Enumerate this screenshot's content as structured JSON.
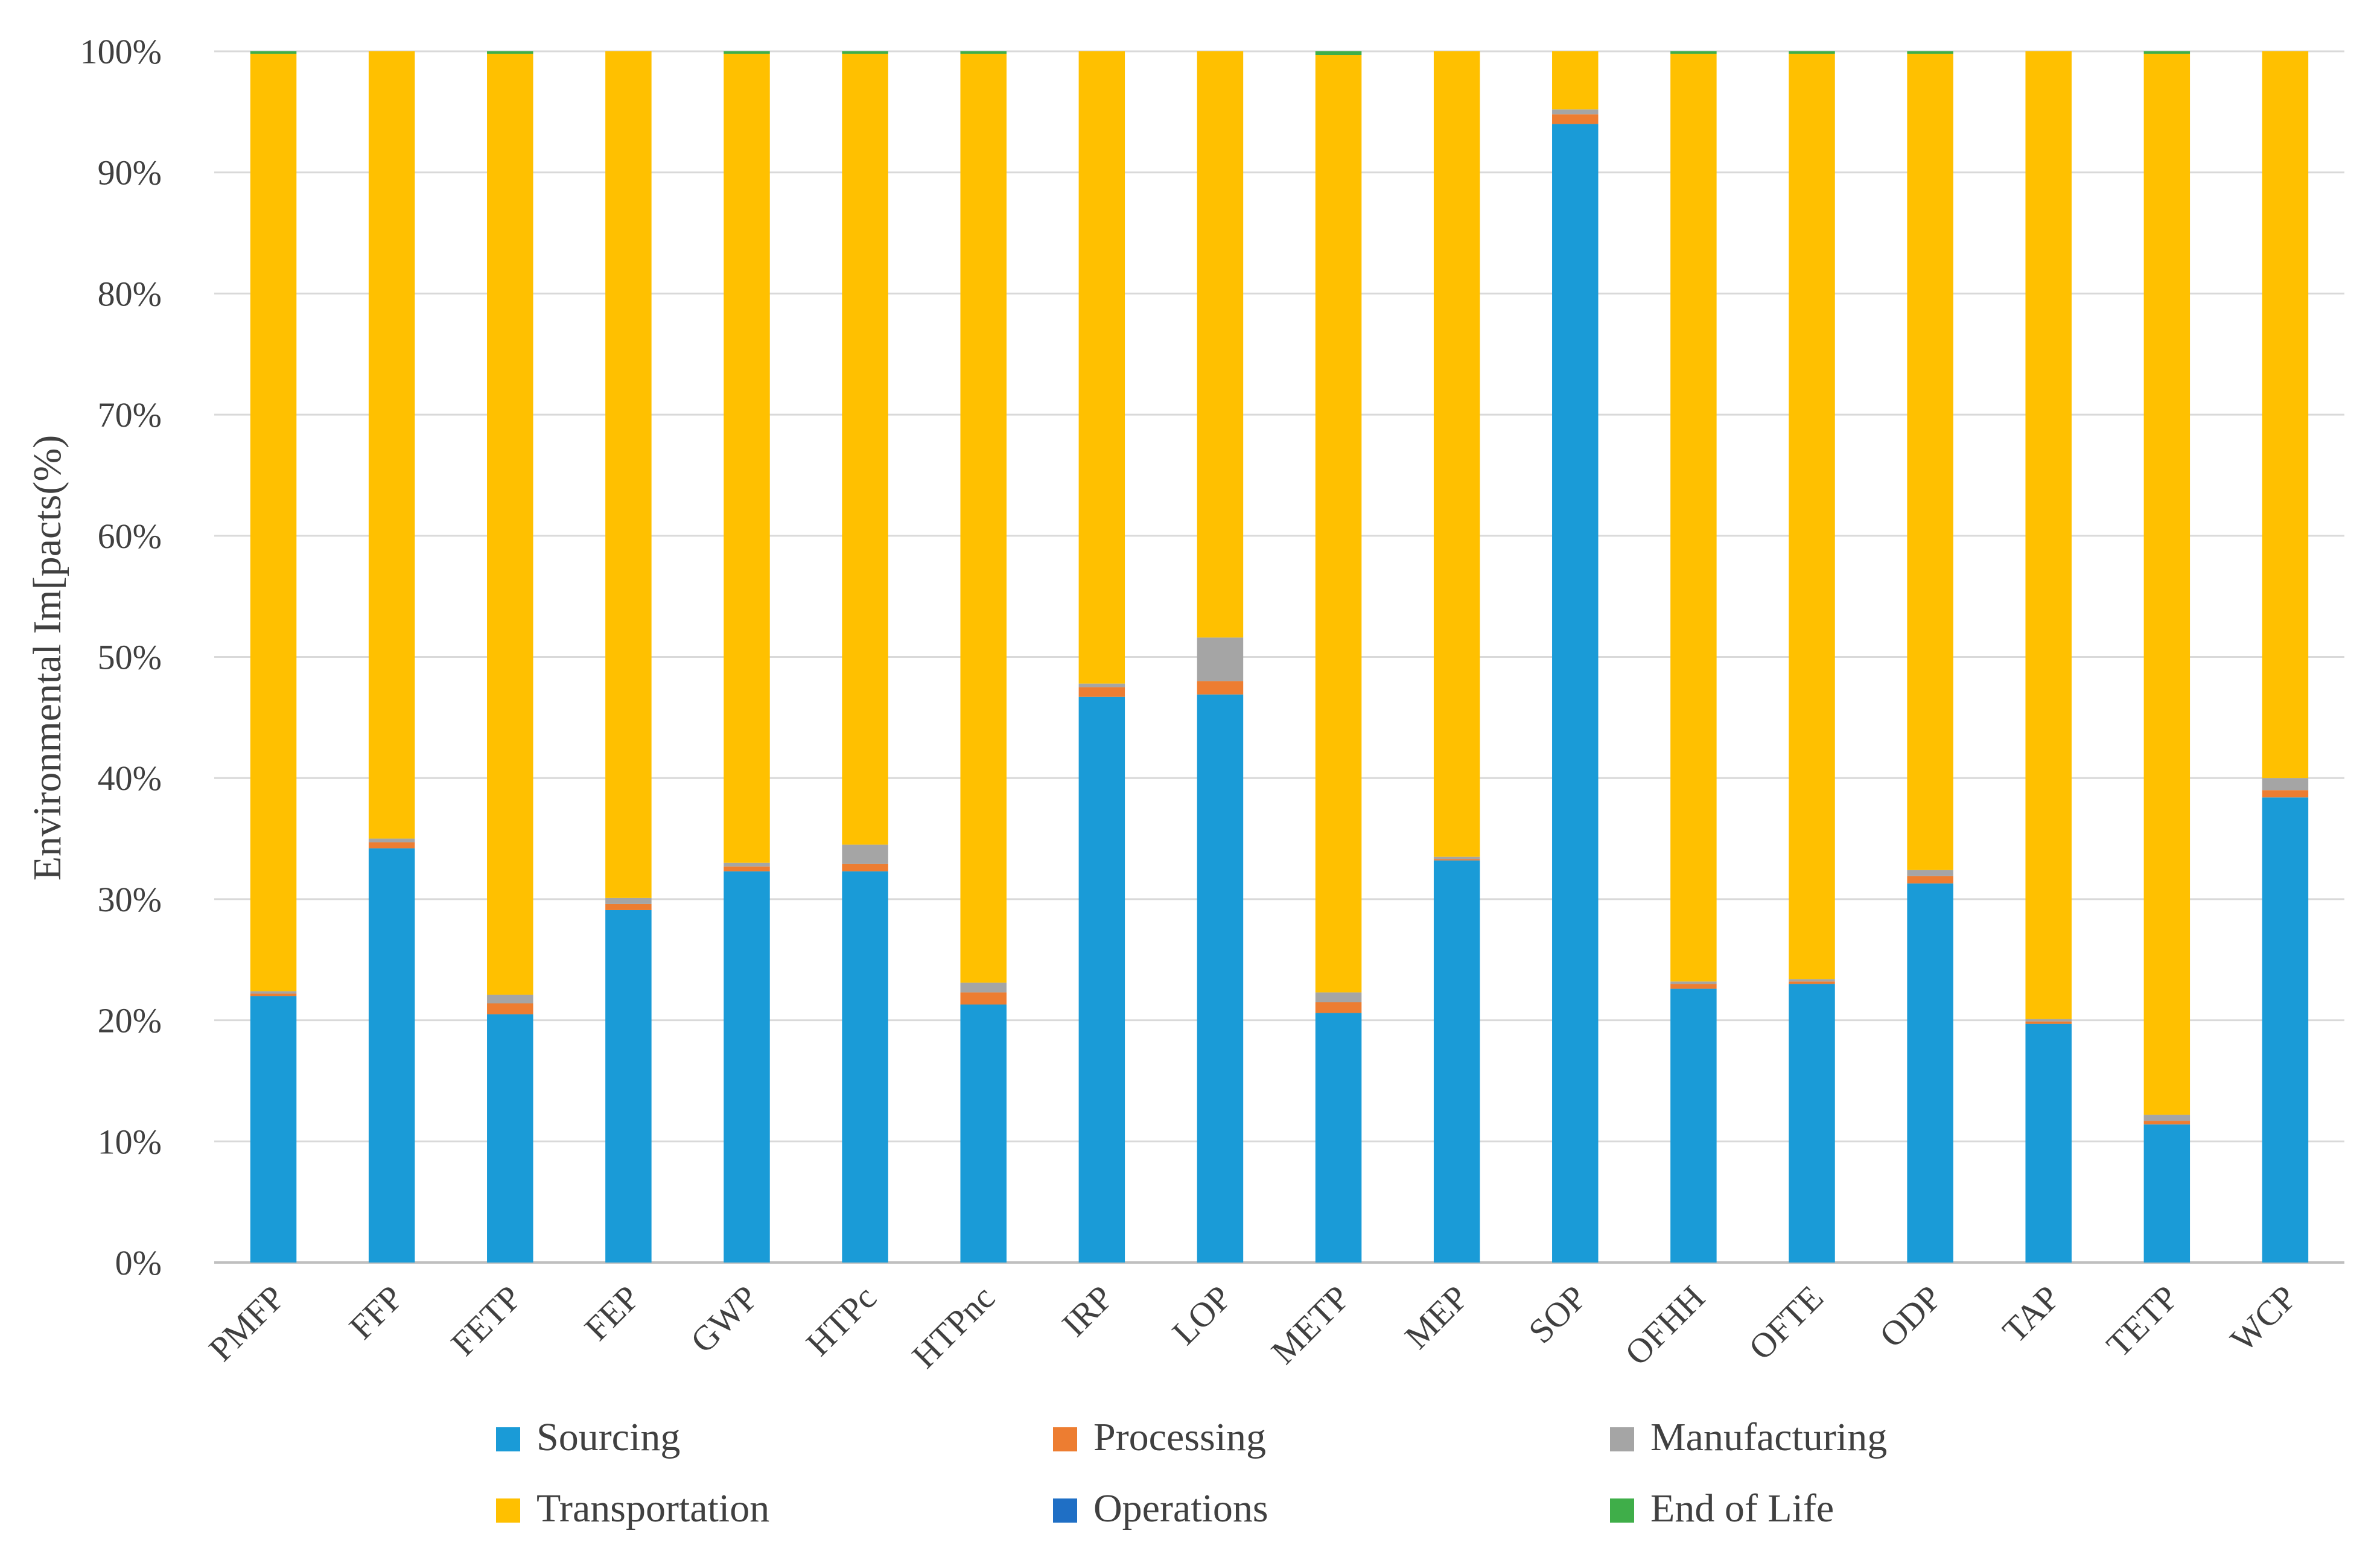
{
  "chart_data": {
    "type": "bar",
    "stacked": true,
    "title": "",
    "xlabel": "",
    "ylabel": "Environmental Im[pacts(%)",
    "ylim": [
      0,
      100
    ],
    "yticks": [
      "0%",
      "10%",
      "20%",
      "30%",
      "40%",
      "50%",
      "60%",
      "70%",
      "80%",
      "90%",
      "100%"
    ],
    "grid": true,
    "legend_position": "bottom",
    "categories": [
      "PMFP",
      "FFP",
      "FETP",
      "FEP",
      "GWP",
      "HTPc",
      "HTPnc",
      "IRP",
      "LOP",
      "METP",
      "MEP",
      "SOP",
      "OFHH",
      "OFTE",
      "ODP",
      "TAP",
      "TETP",
      "WCP"
    ],
    "series": [
      {
        "name": "Sourcing",
        "color": "#1a9bd7",
        "values": [
          22.0,
          34.2,
          20.5,
          29.1,
          32.3,
          32.3,
          21.3,
          46.7,
          46.9,
          20.6,
          33.2,
          94.0,
          22.6,
          23.0,
          31.3,
          19.7,
          11.4,
          38.4
        ]
      },
      {
        "name": "Processing",
        "color": "#ed7d31",
        "values": [
          0.2,
          0.5,
          0.9,
          0.5,
          0.4,
          0.6,
          1.0,
          0.8,
          1.1,
          0.9,
          0.1,
          0.8,
          0.4,
          0.2,
          0.6,
          0.2,
          0.3,
          0.6
        ]
      },
      {
        "name": "Manufacturing",
        "color": "#a5a5a5",
        "values": [
          0.2,
          0.3,
          0.7,
          0.5,
          0.3,
          1.6,
          0.8,
          0.3,
          3.6,
          0.8,
          0.2,
          0.4,
          0.2,
          0.2,
          0.5,
          0.2,
          0.5,
          1.0
        ]
      },
      {
        "name": "Transportation",
        "color": "#ffc000",
        "values": [
          77.4,
          65.0,
          77.7,
          69.9,
          66.8,
          65.3,
          76.7,
          52.2,
          48.4,
          77.4,
          66.5,
          4.8,
          76.6,
          76.4,
          67.4,
          79.9,
          87.6,
          60.0
        ]
      },
      {
        "name": "Operations",
        "color": "#1f6fc5",
        "values": [
          0,
          0,
          0,
          0,
          0,
          0,
          0,
          0,
          0,
          0,
          0,
          0,
          0,
          0,
          0,
          0,
          0,
          0
        ]
      },
      {
        "name": "End of Life",
        "color": "#3fae49",
        "values": [
          0.2,
          0.0,
          0.2,
          0.0,
          0.2,
          0.2,
          0.2,
          0.0,
          0.0,
          0.3,
          0.0,
          0.0,
          0.2,
          0.2,
          0.2,
          0.0,
          0.2,
          0.0
        ]
      }
    ]
  }
}
